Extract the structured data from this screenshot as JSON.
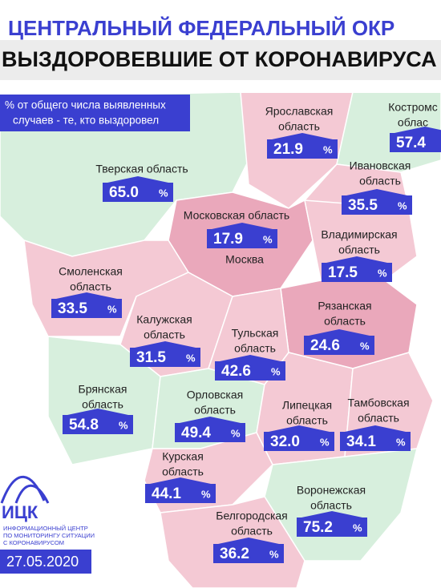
{
  "header": {
    "line1": "ЦЕНТРАЛЬНЫЙ ФЕДЕРАЛЬНЫЙ ОКР",
    "line2": "ВЫЗДОРОВЕВШИЕ ОТ КОРОНАВИРУСА"
  },
  "legend": {
    "lines": [
      "% от общего числа выявленных",
      "случаев - те, кто выздоровел"
    ]
  },
  "regions": [
    {
      "name": [
        "Ярославская",
        "область"
      ],
      "value": "21.9",
      "unit": "%"
    },
    {
      "name": [
        "Костромс",
        "облас"
      ],
      "value": "57.4"
    },
    {
      "name": [
        "Тверская область"
      ],
      "value": "65.0",
      "unit": "%"
    },
    {
      "name": [
        "Ивановская",
        "область"
      ],
      "value": "35.5",
      "unit": "%"
    },
    {
      "name": [
        "Московская область"
      ],
      "value": "17.9",
      "unit": "%"
    },
    {
      "name": [
        "Владимирская",
        "область"
      ],
      "value": "17.5",
      "unit": "%"
    },
    {
      "name": [
        "Смоленская",
        "область"
      ],
      "value": "33.5",
      "unit": "%"
    },
    {
      "name": [
        "Рязанская",
        "область"
      ],
      "value": "24.6",
      "unit": "%"
    },
    {
      "name": [
        "Калужская",
        "область"
      ],
      "value": "31.5",
      "unit": "%"
    },
    {
      "name": [
        "Тульская",
        "область"
      ],
      "value": "42.6",
      "unit": "%"
    },
    {
      "name": [
        "Брянская",
        "область"
      ],
      "value": "54.8",
      "unit": "%"
    },
    {
      "name": [
        "Орловская",
        "область"
      ],
      "value": "49.4",
      "unit": "%"
    },
    {
      "name": [
        "Липецкая",
        "область"
      ],
      "value": "32.0",
      "unit": "%"
    },
    {
      "name": [
        "Тамбовская",
        "область"
      ],
      "value": "34.1",
      "unit": "%"
    },
    {
      "name": [
        "Курская",
        "область"
      ],
      "value": "44.1",
      "unit": "%"
    },
    {
      "name": [
        "Воронежская",
        "область"
      ],
      "value": "75.2",
      "unit": "%"
    },
    {
      "name": [
        "Белгородская",
        "область"
      ],
      "value": "36.2",
      "unit": "%"
    }
  ],
  "city": "Москва",
  "logo": {
    "title": "ИЦК",
    "lines": [
      "ИНФОРМАЦИОННЫЙ ЦЕНТР",
      "ПО МОНИТОРИНГУ СИТУАЦИИ",
      "С КОРОНАВИРУСОМ"
    ]
  },
  "date": "27.05.2020"
}
